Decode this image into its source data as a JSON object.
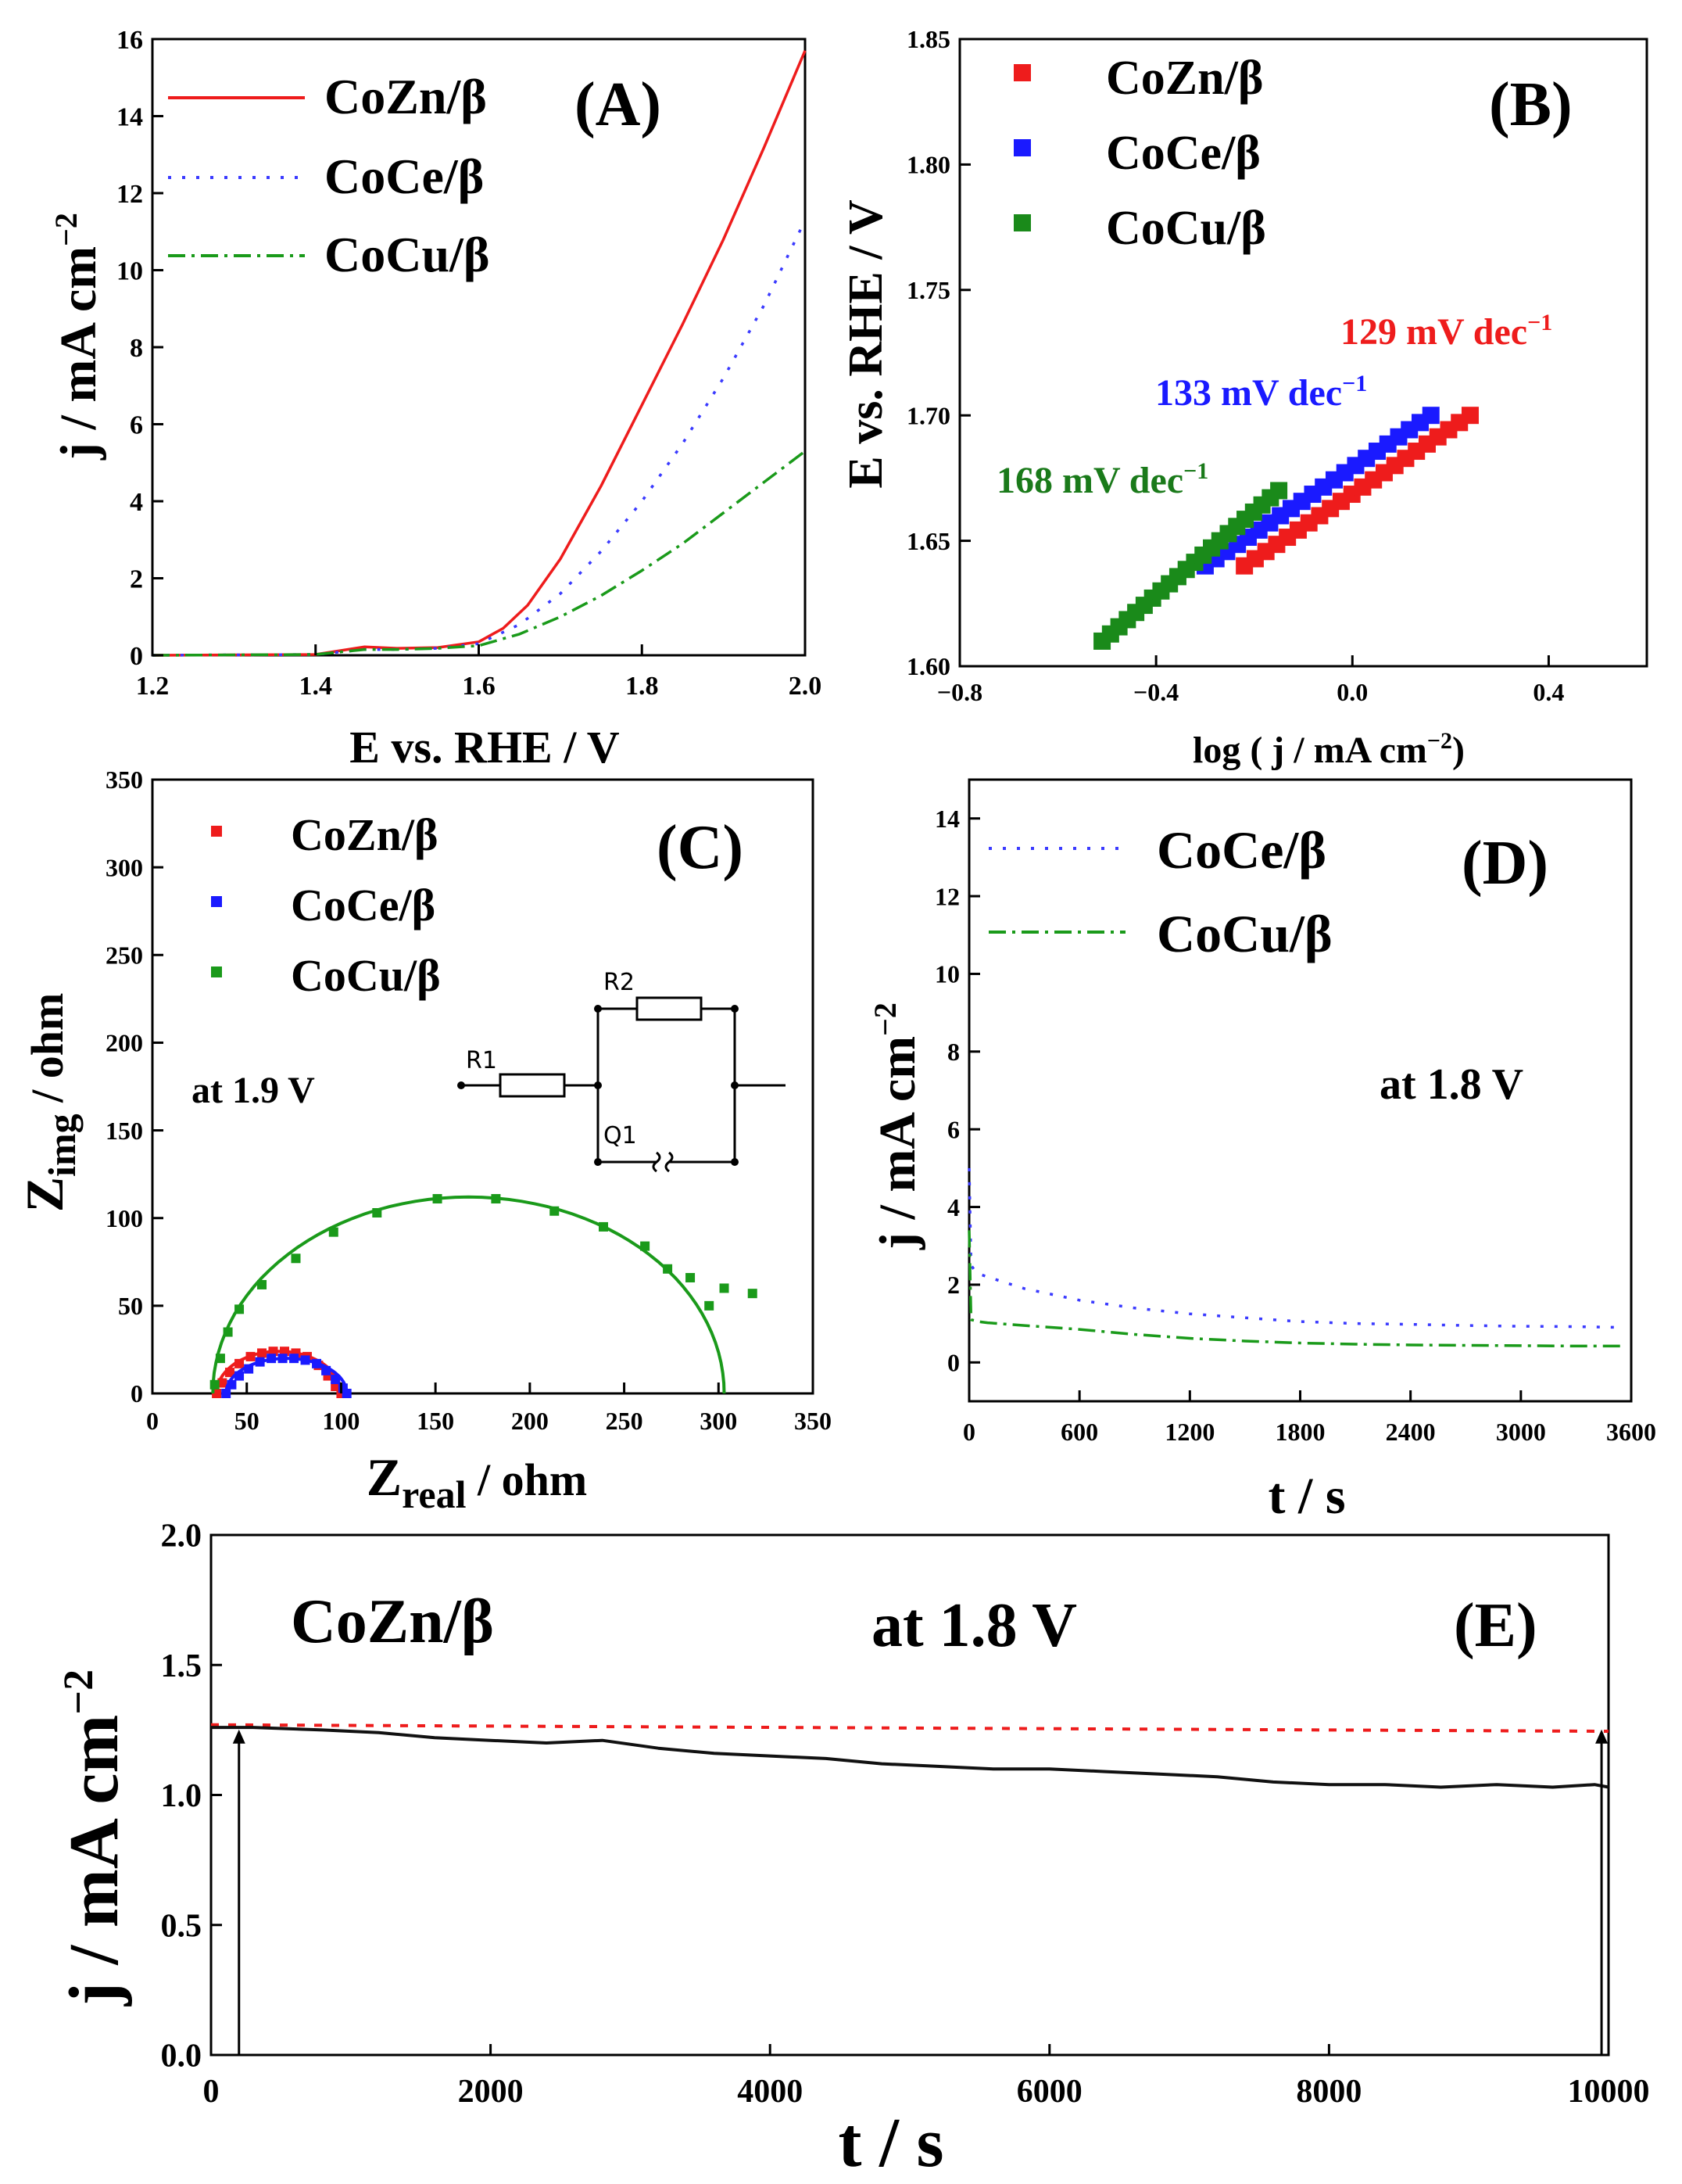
{
  "chart_data": [
    {
      "id": "A",
      "type": "line",
      "panel_label": "(A)",
      "xlabel": "E vs. RHE / V",
      "ylabel": "j / mA cm",
      "ylabel_sup": "−2",
      "xlim": [
        1.2,
        2.0
      ],
      "ylim": [
        0,
        16
      ],
      "xticks": [
        1.2,
        1.4,
        1.6,
        1.8,
        2.0
      ],
      "xtick_labels": [
        "1.2",
        "1.4",
        "1.6",
        "1.8",
        "2.0"
      ],
      "yticks": [
        0,
        2,
        4,
        6,
        8,
        10,
        12,
        14,
        16
      ],
      "ytick_labels": [
        "0",
        "2",
        "4",
        "6",
        "8",
        "10",
        "12",
        "14",
        "16"
      ],
      "series": [
        {
          "name": "CoZn/β",
          "color": "#ee1c1c",
          "style": "solid",
          "x": [
            1.2,
            1.4,
            1.43,
            1.46,
            1.5,
            1.55,
            1.6,
            1.63,
            1.66,
            1.7,
            1.75,
            1.8,
            1.85,
            1.9,
            1.95,
            2.0
          ],
          "y": [
            0,
            0.02,
            0.12,
            0.22,
            0.18,
            0.2,
            0.35,
            0.7,
            1.3,
            2.5,
            4.4,
            6.5,
            8.6,
            10.8,
            13.2,
            15.7
          ]
        },
        {
          "name": "CoCe/β",
          "color": "#3a3aff",
          "style": "dotted",
          "x": [
            1.2,
            1.4,
            1.46,
            1.5,
            1.55,
            1.6,
            1.65,
            1.7,
            1.75,
            1.8,
            1.85,
            1.9,
            1.95,
            2.0
          ],
          "y": [
            0,
            0.02,
            0.15,
            0.15,
            0.18,
            0.3,
            0.8,
            1.6,
            2.7,
            4.0,
            5.5,
            7.2,
            9.1,
            11.3
          ]
        },
        {
          "name": "CoCu/β",
          "color": "#1a9a1a",
          "style": "dashdot",
          "x": [
            1.2,
            1.4,
            1.46,
            1.5,
            1.55,
            1.6,
            1.65,
            1.7,
            1.75,
            1.8,
            1.85,
            1.9,
            1.95,
            2.0
          ],
          "y": [
            0,
            0.02,
            0.15,
            0.15,
            0.18,
            0.25,
            0.55,
            1.0,
            1.55,
            2.2,
            2.9,
            3.7,
            4.5,
            5.3
          ]
        }
      ]
    },
    {
      "id": "B",
      "type": "scatter",
      "panel_label": "(B)",
      "xlabel": "log ( j / mA cm",
      "xlabel_sup": "−2",
      "xlabel_end": ")",
      "ylabel": "E vs. RHE / V",
      "xlim": [
        -0.8,
        0.6
      ],
      "ylim": [
        1.6,
        1.85
      ],
      "xticks": [
        -0.8,
        -0.4,
        0.0,
        0.4
      ],
      "xtick_labels": [
        "−0.8",
        "−0.4",
        "0.0",
        "0.4"
      ],
      "yticks": [
        1.6,
        1.65,
        1.7,
        1.75,
        1.8,
        1.85
      ],
      "ytick_labels": [
        "1.60",
        "1.65",
        "1.70",
        "1.75",
        "1.80",
        "1.85"
      ],
      "series": [
        {
          "name": "CoZn/β",
          "color": "#ee1c1c",
          "x_range": [
            -0.22,
            0.24
          ],
          "y_range": [
            1.64,
            1.7
          ],
          "n": 22
        },
        {
          "name": "CoCe/β",
          "color": "#1a1aff",
          "x_range": [
            -0.3,
            0.16
          ],
          "y_range": [
            1.64,
            1.7
          ],
          "n": 22
        },
        {
          "name": "CoCu/β",
          "color": "#1a8a1a",
          "x_range": [
            -0.51,
            -0.15
          ],
          "y_range": [
            1.61,
            1.67
          ],
          "n": 22
        }
      ],
      "annotations": [
        {
          "text": "129  mV dec",
          "sup": "−1",
          "color": "#ee1c1c"
        },
        {
          "text": "133 mV dec",
          "sup": "−1",
          "color": "#1a1aff"
        },
        {
          "text": "168  mV dec",
          "sup": "−1",
          "color": "#1a7a1a"
        }
      ]
    },
    {
      "id": "C",
      "type": "scatter",
      "panel_label": "(C)",
      "xlabel": "Z",
      "xlabel_sub": "real",
      "xlabel_end": " / ohm",
      "ylabel": "Z",
      "ylabel_sub": "img",
      "ylabel_end": " / ohm",
      "xlim": [
        0,
        350
      ],
      "ylim": [
        0,
        350
      ],
      "xticks": [
        0,
        50,
        100,
        150,
        200,
        250,
        300,
        350
      ],
      "xtick_labels": [
        "0",
        "50",
        "100",
        "150",
        "200",
        "250",
        "300",
        "350"
      ],
      "yticks": [
        0,
        50,
        100,
        150,
        200,
        250,
        300,
        350
      ],
      "ytick_labels": [
        "0",
        "50",
        "100",
        "150",
        "200",
        "250",
        "300",
        "350"
      ],
      "condition": "at 1.9 V",
      "circuit_labels": {
        "r1": "R1",
        "r2": "R2",
        "q1": "Q1"
      },
      "series": [
        {
          "name": "CoZn/β",
          "color": "#ee1c1c",
          "arc": [
            34,
            100,
            24
          ],
          "x": [
            34,
            37,
            41,
            46,
            52,
            58,
            64,
            70,
            76,
            82,
            88,
            93,
            97,
            100
          ],
          "y": [
            0,
            6,
            12,
            17,
            21,
            23,
            24,
            24,
            23,
            21,
            16,
            10,
            4,
            0
          ]
        },
        {
          "name": "CoCe/β",
          "color": "#1a1aff",
          "arc": [
            39,
            103,
            20
          ],
          "x": [
            39,
            42,
            46,
            51,
            57,
            63,
            69,
            75,
            81,
            87,
            92,
            97,
            101,
            103
          ],
          "y": [
            0,
            5,
            10,
            14,
            18,
            20,
            20,
            20,
            19,
            17,
            13,
            8,
            3,
            0
          ]
        },
        {
          "name": "CoCu/β",
          "color": "#1a9a1a",
          "arc": [
            32,
            303,
            112
          ],
          "x": [
            33,
            36,
            40,
            46,
            58,
            76,
            96,
            119,
            151,
            182,
            213,
            239,
            261,
            273,
            285,
            295,
            303,
            318
          ],
          "y": [
            5,
            20,
            35,
            48,
            62,
            77,
            92,
            103,
            111,
            111,
            104,
            95,
            84,
            71,
            66,
            50,
            60,
            57
          ]
        }
      ]
    },
    {
      "id": "D",
      "type": "line",
      "panel_label": "(D)",
      "xlabel": "t / s",
      "ylabel": "j / mA cm",
      "ylabel_sup": "−2",
      "xlim": [
        0,
        3600
      ],
      "ylim": [
        -1,
        15
      ],
      "xticks": [
        0,
        600,
        1200,
        1800,
        2400,
        3000,
        3600
      ],
      "xtick_labels": [
        "0",
        "600",
        "1200",
        "1800",
        "2400",
        "3000",
        "3600"
      ],
      "yticks": [
        0,
        2,
        4,
        6,
        8,
        10,
        12,
        14
      ],
      "ytick_labels": [
        "0",
        "2",
        "4",
        "6",
        "8",
        "10",
        "12",
        "14"
      ],
      "condition": "at 1.8 V",
      "series": [
        {
          "name": "CoCe/β",
          "color": "#3a3aff",
          "style": "dotted",
          "x": [
            0,
            10,
            40,
            100,
            300,
            600,
            900,
            1200,
            1500,
            1800,
            2100,
            2400,
            2700,
            3000,
            3300,
            3550
          ],
          "y": [
            5.0,
            2.5,
            2.3,
            2.2,
            1.9,
            1.6,
            1.4,
            1.25,
            1.15,
            1.05,
            1.0,
            0.98,
            0.95,
            0.93,
            0.92,
            0.9
          ]
        },
        {
          "name": "CoCu/β",
          "color": "#1a9a1a",
          "style": "dashdot",
          "x": [
            0,
            10,
            50,
            100,
            300,
            600,
            900,
            1200,
            1500,
            1800,
            2100,
            2400,
            2700,
            3000,
            3300,
            3550
          ],
          "y": [
            3.4,
            1.1,
            1.05,
            1.02,
            0.95,
            0.85,
            0.72,
            0.62,
            0.55,
            0.5,
            0.47,
            0.45,
            0.44,
            0.43,
            0.42,
            0.42
          ]
        }
      ]
    },
    {
      "id": "E",
      "type": "line",
      "panel_label": "(E)",
      "title": "CoZn/β",
      "xlabel": "t / s",
      "ylabel": "j / mA cm",
      "ylabel_sup": "−2",
      "xlim": [
        0,
        10000
      ],
      "ylim": [
        0,
        2.0
      ],
      "xticks": [
        0,
        2000,
        4000,
        6000,
        8000,
        10000
      ],
      "xtick_labels": [
        "0",
        "2000",
        "4000",
        "6000",
        "8000",
        "10000"
      ],
      "yticks": [
        0,
        0.5,
        1.0,
        1.5,
        2.0
      ],
      "ytick_labels": [
        "0.0",
        "0.5",
        "1.0",
        "1.5",
        "2.0"
      ],
      "condition": "at 1.8 V",
      "reference_line": {
        "color": "#ee1c1c",
        "x": [
          0,
          10000
        ],
        "y": [
          1.27,
          1.245
        ]
      },
      "arrows_at_x": [
        200,
        9950
      ],
      "series": [
        {
          "name": "CoZn/β",
          "color": "#111111",
          "style": "solid",
          "x": [
            0,
            300,
            800,
            1200,
            1600,
            2000,
            2400,
            2800,
            3200,
            3600,
            4000,
            4400,
            4800,
            5200,
            5600,
            6000,
            6400,
            6800,
            7200,
            7600,
            8000,
            8400,
            8800,
            9200,
            9600,
            9900,
            10000
          ],
          "y": [
            1.26,
            1.26,
            1.25,
            1.24,
            1.22,
            1.21,
            1.2,
            1.21,
            1.18,
            1.16,
            1.15,
            1.14,
            1.12,
            1.11,
            1.1,
            1.1,
            1.09,
            1.08,
            1.07,
            1.05,
            1.04,
            1.04,
            1.03,
            1.04,
            1.03,
            1.04,
            1.03
          ]
        }
      ]
    }
  ]
}
